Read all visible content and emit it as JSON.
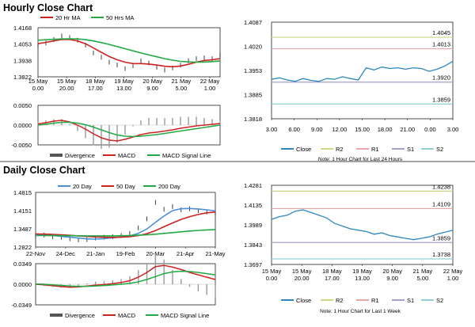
{
  "sections": {
    "hourly_title": "Hourly Close Chart",
    "daily_title": "Daily Close Chart"
  },
  "colors": {
    "ma_fast": "#cc2222",
    "ma_slow": "#22aa44",
    "ma_20day": "#4d8fd6",
    "close": "#2e86c1",
    "r2": "#c9d98a",
    "r1": "#e8a6a6",
    "s1": "#a89ec8",
    "s2": "#8fd2d4",
    "divergence": "#999999",
    "price": "#111111"
  },
  "chart_data": [
    {
      "id": "hourly_price",
      "type": "line",
      "legend": [
        "20 Hr MA",
        "50 Hrs MA"
      ],
      "y_ticks": [
        "1.4168",
        "1.4053",
        "1.3938",
        "1.3822"
      ],
      "ylim": [
        1.3822,
        1.4168
      ],
      "x_ticks": [
        [
          "15 May",
          "0.00"
        ],
        [
          "15 May",
          "20.00"
        ],
        [
          "18 May",
          "17.00"
        ],
        [
          "19 May",
          "13.00"
        ],
        [
          "20 May",
          "9.00"
        ],
        [
          "21 May",
          "5.00"
        ],
        [
          "22 May",
          "1.00"
        ]
      ],
      "price": [
        1.404,
        1.406,
        1.4085,
        1.411,
        1.4098,
        1.408,
        1.4045,
        1.399,
        1.396,
        1.3925,
        1.3905,
        1.388,
        1.39,
        1.3935,
        1.392,
        1.389,
        1.387,
        1.3885,
        1.3905,
        1.3935,
        1.395,
        1.3955,
        1.395,
        1.3975
      ],
      "series": [
        {
          "name": "20 Hr MA",
          "values": [
            1.4055,
            1.4065,
            1.4075,
            1.4085,
            1.4085,
            1.4075,
            1.4055,
            1.4025,
            1.3995,
            1.3965,
            1.3942,
            1.3925,
            1.3915,
            1.3915,
            1.3912,
            1.3905,
            1.3896,
            1.3893,
            1.3898,
            1.391,
            1.3925,
            1.3937,
            1.3942,
            1.395
          ]
        },
        {
          "name": "50 Hrs MA",
          "values": [
            1.408,
            1.4083,
            1.4086,
            1.4089,
            1.409,
            1.4089,
            1.4084,
            1.4075,
            1.4063,
            1.405,
            1.4035,
            1.402,
            1.4005,
            1.399,
            1.3976,
            1.3963,
            1.395,
            1.3939,
            1.3931,
            1.3927,
            1.3925,
            1.3926,
            1.3929,
            1.3934
          ]
        }
      ]
    },
    {
      "id": "hourly_macd",
      "type": "line",
      "y_ticks": [
        "0.0050",
        "0.0000",
        "-0.0050"
      ],
      "ylim": [
        -0.005,
        0.005
      ],
      "legend": [
        "Divergence",
        "MACD",
        "MACD Signal Line"
      ],
      "series": [
        {
          "name": "MACD",
          "values": [
            0.0003,
            0.0006,
            0.001,
            0.0012,
            0.0008,
            0.0,
            -0.001,
            -0.0022,
            -0.0032,
            -0.0038,
            -0.004,
            -0.0036,
            -0.003,
            -0.0024,
            -0.002,
            -0.0018,
            -0.0015,
            -0.0012,
            -0.0008,
            -0.0005,
            -0.0002,
            0.0,
            0.0002,
            0.0004
          ]
        },
        {
          "name": "MACD Signal Line",
          "values": [
            0.0,
            0.0002,
            0.0005,
            0.0007,
            0.0007,
            0.0005,
            0.0001,
            -0.0005,
            -0.0012,
            -0.0019,
            -0.0025,
            -0.0028,
            -0.0029,
            -0.0028,
            -0.0026,
            -0.0024,
            -0.0021,
            -0.0018,
            -0.0015,
            -0.0012,
            -0.0009,
            -0.0006,
            -0.0003,
            0.0
          ]
        }
      ]
    },
    {
      "id": "hourly_pivot",
      "type": "line",
      "y_ticks": [
        "1.4087",
        "1.4020",
        "1.3953",
        "1.3885",
        "1.3818"
      ],
      "ylim": [
        1.3818,
        1.4087
      ],
      "x_ticks": [
        "3.00",
        "6.00",
        "9.00",
        "12.00",
        "15.00",
        "18.00",
        "21.00",
        "0.00",
        "3.00"
      ],
      "levels": {
        "R2": 1.4045,
        "R1": 1.4013,
        "S1": 1.392,
        "S2": 1.3859
      },
      "level_labels": {
        "R2": "1.4045",
        "R1": "1.4013",
        "S1": "1.3920",
        "S2": "1.3859"
      },
      "legend": [
        "Close",
        "R2",
        "R1",
        "S1",
        "S2"
      ],
      "note": "Note: 1 Hour Chart for Last 24 Hours",
      "values": [
        1.3928,
        1.3932,
        1.3926,
        1.3922,
        1.393,
        1.3925,
        1.3922,
        1.393,
        1.3928,
        1.3935,
        1.393,
        1.3926,
        1.396,
        1.3954,
        1.3962,
        1.3958,
        1.396,
        1.3956,
        1.396,
        1.3958,
        1.395,
        1.3956,
        1.3965,
        1.3978
      ]
    },
    {
      "id": "daily_price",
      "type": "line",
      "legend": [
        "20 Day",
        "50 Day",
        "200 Day"
      ],
      "y_ticks": [
        "1.4815",
        "1.4151",
        "1.3487",
        "1.2822"
      ],
      "ylim": [
        1.2822,
        1.4815
      ],
      "x_ticks": [
        "22-Nov",
        "24-Dec",
        "21-Jan",
        "19-Feb",
        "20-Mar",
        "21-Apr",
        "21-May"
      ],
      "price": [
        1.323,
        1.326,
        1.32,
        1.318,
        1.312,
        1.308,
        1.309,
        1.315,
        1.318,
        1.32,
        1.324,
        1.332,
        1.352,
        1.385,
        1.445,
        1.42,
        1.43,
        1.418,
        1.422,
        1.415,
        1.41,
        1.405
      ],
      "series": [
        {
          "name": "20 Day",
          "values": [
            1.328,
            1.327,
            1.324,
            1.321,
            1.318,
            1.315,
            1.312,
            1.311,
            1.313,
            1.316,
            1.319,
            1.323,
            1.332,
            1.348,
            1.372,
            1.395,
            1.415,
            1.422,
            1.423,
            1.421,
            1.418,
            1.414
          ]
        },
        {
          "name": "50 Day",
          "values": [
            1.33,
            1.3295,
            1.3285,
            1.327,
            1.325,
            1.323,
            1.321,
            1.319,
            1.318,
            1.3175,
            1.318,
            1.32,
            1.324,
            1.331,
            1.342,
            1.356,
            1.37,
            1.383,
            1.393,
            1.401,
            1.407,
            1.41
          ]
        },
        {
          "name": "200 Day",
          "values": [
            1.324,
            1.324,
            1.3238,
            1.3236,
            1.3234,
            1.3232,
            1.323,
            1.3228,
            1.3228,
            1.323,
            1.3235,
            1.3242,
            1.3252,
            1.3268,
            1.329,
            1.3318,
            1.3348,
            1.3378,
            1.3405,
            1.3428,
            1.3446,
            1.346
          ]
        }
      ]
    },
    {
      "id": "daily_macd",
      "type": "line",
      "y_ticks": [
        "0.0349",
        "0.0000",
        "-0.0349"
      ],
      "ylim": [
        -0.0349,
        0.0349
      ],
      "legend": [
        "Divergence",
        "MACD",
        "MACD Signal Line"
      ],
      "series": [
        {
          "name": "MACD",
          "values": [
            0.0,
            -0.001,
            -0.0025,
            -0.004,
            -0.005,
            -0.0045,
            -0.003,
            -0.0015,
            -0.0005,
            0.001,
            0.003,
            0.006,
            0.012,
            0.02,
            0.03,
            0.032,
            0.029,
            0.025,
            0.02,
            0.016,
            0.012,
            0.008
          ]
        },
        {
          "name": "MACD Signal Line",
          "values": [
            0.0005,
            0.0,
            -0.001,
            -0.002,
            -0.003,
            -0.0035,
            -0.0035,
            -0.003,
            -0.0022,
            -0.0012,
            0.0,
            0.0015,
            0.004,
            0.008,
            0.013,
            0.018,
            0.021,
            0.022,
            0.0215,
            0.02,
            0.018,
            0.016
          ]
        }
      ]
    },
    {
      "id": "daily_pivot",
      "type": "line",
      "y_ticks": [
        "1.4281",
        "1.4135",
        "1.3989",
        "1.3843",
        "1.3697"
      ],
      "ylim": [
        1.3697,
        1.4281
      ],
      "x_ticks": [
        [
          "15 May",
          "0.00"
        ],
        [
          "15 May",
          "20.00"
        ],
        [
          "18 May",
          "17.00"
        ],
        [
          "19 May",
          "13.00"
        ],
        [
          "20 May",
          "9.00"
        ],
        [
          "21 May",
          "5.00"
        ],
        [
          "22 May",
          "1.00"
        ]
      ],
      "levels": {
        "R2": 1.4238,
        "R1": 1.4109,
        "S1": 1.3859,
        "S2": 1.3738
      },
      "level_labels": {
        "R2": "1.4238",
        "R1": "1.4109",
        "S1": "1.3859",
        "S2": "1.3738"
      },
      "legend": [
        "Close",
        "R2",
        "R1",
        "S1",
        "S2"
      ],
      "note": "Note: 1 Hour Chart for  Last 1 Week",
      "values": [
        1.403,
        1.405,
        1.406,
        1.409,
        1.41,
        1.408,
        1.406,
        1.404,
        1.4,
        1.398,
        1.396,
        1.395,
        1.394,
        1.392,
        1.393,
        1.391,
        1.39,
        1.389,
        1.388,
        1.389,
        1.39,
        1.392,
        1.3935,
        1.395
      ]
    }
  ]
}
